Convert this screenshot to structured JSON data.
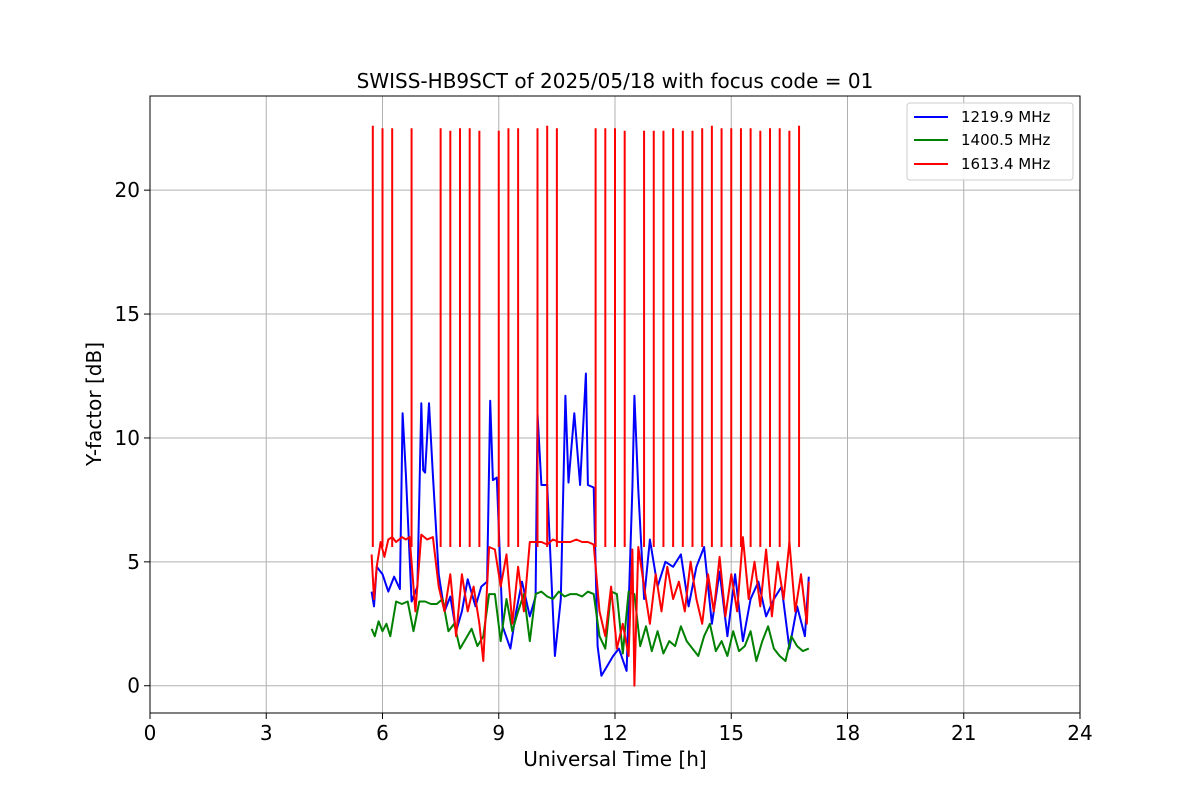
{
  "chart_data": {
    "type": "line",
    "title": "SWISS-HB9SCT of 2025/05/18 with focus code = 01",
    "xlabel": "Universal Time [h]",
    "ylabel": "Y-factor [dB]",
    "xlim": [
      0,
      24
    ],
    "ylim": [
      -1.1,
      23.8
    ],
    "xticks": [
      0,
      3,
      6,
      9,
      12,
      15,
      18,
      21,
      24
    ],
    "yticks": [
      0,
      5,
      10,
      15,
      20
    ],
    "grid": true,
    "legend_position": "upper right",
    "series": [
      {
        "name": "1219.9 MHz",
        "color": "#0000ff",
        "x": [
          5.72,
          5.78,
          5.85,
          6.0,
          6.15,
          6.3,
          6.45,
          6.52,
          6.6,
          6.75,
          6.9,
          7.0,
          7.05,
          7.1,
          7.2,
          7.3,
          7.45,
          7.6,
          7.75,
          7.9,
          8.05,
          8.2,
          8.4,
          8.55,
          8.7,
          8.78,
          8.85,
          8.95,
          9.1,
          9.3,
          9.45,
          9.6,
          9.8,
          9.95,
          10.0,
          10.1,
          10.25,
          10.45,
          10.6,
          10.72,
          10.8,
          10.95,
          11.1,
          11.25,
          11.3,
          11.45,
          11.55,
          11.65,
          11.8,
          11.95,
          12.1,
          12.3,
          12.45,
          12.5,
          12.6,
          12.75,
          12.9,
          13.1,
          13.3,
          13.5,
          13.7,
          13.9,
          14.1,
          14.3,
          14.5,
          14.7,
          14.9,
          15.1,
          15.3,
          15.5,
          15.7,
          15.9,
          16.1,
          16.3,
          16.5,
          16.7,
          16.9,
          17.0
        ],
        "values": [
          3.8,
          3.2,
          4.8,
          4.5,
          3.8,
          4.4,
          3.9,
          11.0,
          8.6,
          3.4,
          4.0,
          11.4,
          8.7,
          8.6,
          11.4,
          8.5,
          4.5,
          3.0,
          3.6,
          2.2,
          3.0,
          4.3,
          3.2,
          4.0,
          4.2,
          11.5,
          8.3,
          8.4,
          2.4,
          1.5,
          3.0,
          4.2,
          2.8,
          3.6,
          11.0,
          8.1,
          8.1,
          1.2,
          3.5,
          11.7,
          8.2,
          11.0,
          8.1,
          12.6,
          8.1,
          8.0,
          1.6,
          0.4,
          0.8,
          1.2,
          1.5,
          0.6,
          8.0,
          11.7,
          7.9,
          3.5,
          5.9,
          4.0,
          5.0,
          4.8,
          5.3,
          3.2,
          4.8,
          5.6,
          2.5,
          4.6,
          2.0,
          4.5,
          1.8,
          3.5,
          4.2,
          2.8,
          3.5,
          4.0,
          1.5,
          3.2,
          2.0,
          4.4
        ]
      },
      {
        "name": "1400.5 MHz",
        "color": "#008000",
        "x": [
          5.72,
          5.8,
          5.9,
          6.0,
          6.1,
          6.2,
          6.35,
          6.5,
          6.65,
          6.8,
          6.95,
          7.1,
          7.25,
          7.4,
          7.55,
          7.7,
          7.85,
          8.0,
          8.15,
          8.3,
          8.45,
          8.6,
          8.75,
          8.9,
          9.05,
          9.2,
          9.35,
          9.5,
          9.65,
          9.8,
          9.95,
          10.1,
          10.25,
          10.4,
          10.55,
          10.7,
          10.85,
          11.0,
          11.15,
          11.3,
          11.45,
          11.6,
          11.75,
          11.9,
          12.05,
          12.2,
          12.35,
          12.5,
          12.65,
          12.8,
          12.95,
          13.1,
          13.25,
          13.4,
          13.55,
          13.7,
          13.85,
          14.0,
          14.15,
          14.3,
          14.45,
          14.6,
          14.75,
          14.9,
          15.05,
          15.2,
          15.35,
          15.5,
          15.65,
          15.8,
          15.95,
          16.1,
          16.25,
          16.4,
          16.55,
          16.7,
          16.85,
          17.0
        ],
        "values": [
          2.3,
          2.0,
          2.6,
          2.2,
          2.5,
          2.0,
          3.4,
          3.3,
          3.4,
          2.2,
          3.4,
          3.4,
          3.3,
          3.3,
          3.5,
          2.2,
          2.5,
          1.5,
          1.9,
          2.3,
          1.6,
          2.0,
          3.7,
          3.7,
          1.8,
          3.5,
          2.2,
          3.0,
          3.7,
          1.8,
          3.7,
          3.8,
          3.6,
          3.5,
          3.8,
          3.6,
          3.7,
          3.7,
          3.6,
          3.8,
          3.7,
          2.0,
          1.5,
          3.8,
          3.7,
          1.3,
          3.8,
          3.7,
          1.6,
          2.4,
          1.4,
          2.2,
          1.3,
          1.8,
          1.6,
          2.4,
          1.8,
          1.5,
          1.2,
          2.0,
          2.5,
          1.4,
          1.8,
          1.2,
          2.2,
          1.4,
          1.6,
          2.2,
          1.0,
          1.8,
          2.4,
          1.5,
          1.2,
          1.0,
          2.0,
          1.6,
          1.4,
          1.5
        ]
      },
      {
        "name": "1613.4 MHz",
        "color": "#ff0000",
        "x": [
          5.72,
          5.78,
          5.85,
          5.95,
          6.05,
          6.15,
          6.25,
          6.35,
          6.5,
          6.6,
          6.7,
          6.85,
          7.0,
          7.15,
          7.3,
          7.45,
          7.6,
          7.75,
          7.9,
          8.05,
          8.2,
          8.35,
          8.5,
          8.6,
          8.75,
          8.9,
          9.05,
          9.2,
          9.35,
          9.5,
          9.65,
          9.8,
          9.95,
          10.1,
          10.25,
          10.4,
          10.55,
          10.7,
          10.85,
          11.0,
          11.15,
          11.3,
          11.45,
          11.6,
          11.75,
          11.9,
          12.05,
          12.2,
          12.35,
          12.45,
          12.5,
          12.6,
          12.75,
          12.9,
          13.05,
          13.2,
          13.35,
          13.5,
          13.65,
          13.8,
          13.95,
          14.1,
          14.25,
          14.4,
          14.55,
          14.7,
          14.85,
          15.0,
          15.15,
          15.3,
          15.45,
          15.6,
          15.75,
          15.9,
          16.05,
          16.2,
          16.35,
          16.5,
          16.65,
          16.8,
          16.95,
          17.0
        ],
        "values": [
          5.3,
          3.5,
          4.8,
          5.8,
          5.2,
          5.9,
          6.0,
          5.8,
          6.0,
          5.9,
          6.0,
          3.0,
          6.1,
          5.9,
          6.0,
          4.0,
          3.0,
          4.5,
          2.0,
          4.5,
          3.0,
          4.0,
          2.5,
          1.0,
          5.6,
          5.5,
          4.0,
          5.3,
          2.5,
          4.8,
          3.0,
          5.8,
          5.8,
          5.8,
          5.7,
          5.9,
          5.8,
          5.8,
          5.8,
          5.9,
          5.8,
          5.8,
          5.7,
          3.0,
          2.0,
          4.0,
          1.5,
          2.5,
          1.2,
          5.5,
          0.0,
          5.6,
          4.0,
          2.5,
          4.5,
          3.0,
          4.8,
          3.5,
          4.2,
          3.0,
          5.0,
          3.5,
          2.5,
          4.5,
          3.0,
          5.2,
          2.8,
          4.5,
          3.0,
          6.0,
          3.5,
          5.0,
          3.2,
          5.5,
          2.8,
          5.0,
          3.5,
          5.8,
          3.0,
          4.5,
          2.5,
          4.2
        ]
      }
    ],
    "spikes": {
      "series": "1613.4 MHz",
      "x": [
        5.75,
        6.0,
        6.25,
        6.75,
        7.5,
        7.75,
        8.0,
        8.25,
        8.5,
        9.0,
        9.25,
        9.5,
        10.0,
        10.25,
        10.5,
        11.5,
        11.75,
        12.0,
        12.25,
        12.75,
        13.0,
        13.25,
        13.5,
        13.75,
        14.0,
        14.25,
        14.5,
        14.75,
        15.0,
        15.25,
        15.5,
        15.75,
        16.0,
        16.25,
        16.5,
        16.75
      ],
      "values": [
        22.6,
        22.5,
        22.5,
        22.5,
        22.5,
        22.4,
        22.5,
        22.5,
        22.4,
        22.4,
        22.5,
        22.5,
        22.5,
        22.6,
        22.5,
        22.5,
        22.5,
        22.5,
        22.4,
        22.4,
        22.4,
        22.4,
        22.5,
        22.4,
        22.4,
        22.5,
        22.6,
        22.5,
        22.5,
        22.5,
        22.5,
        22.4,
        22.5,
        22.5,
        22.4,
        22.6
      ]
    }
  }
}
